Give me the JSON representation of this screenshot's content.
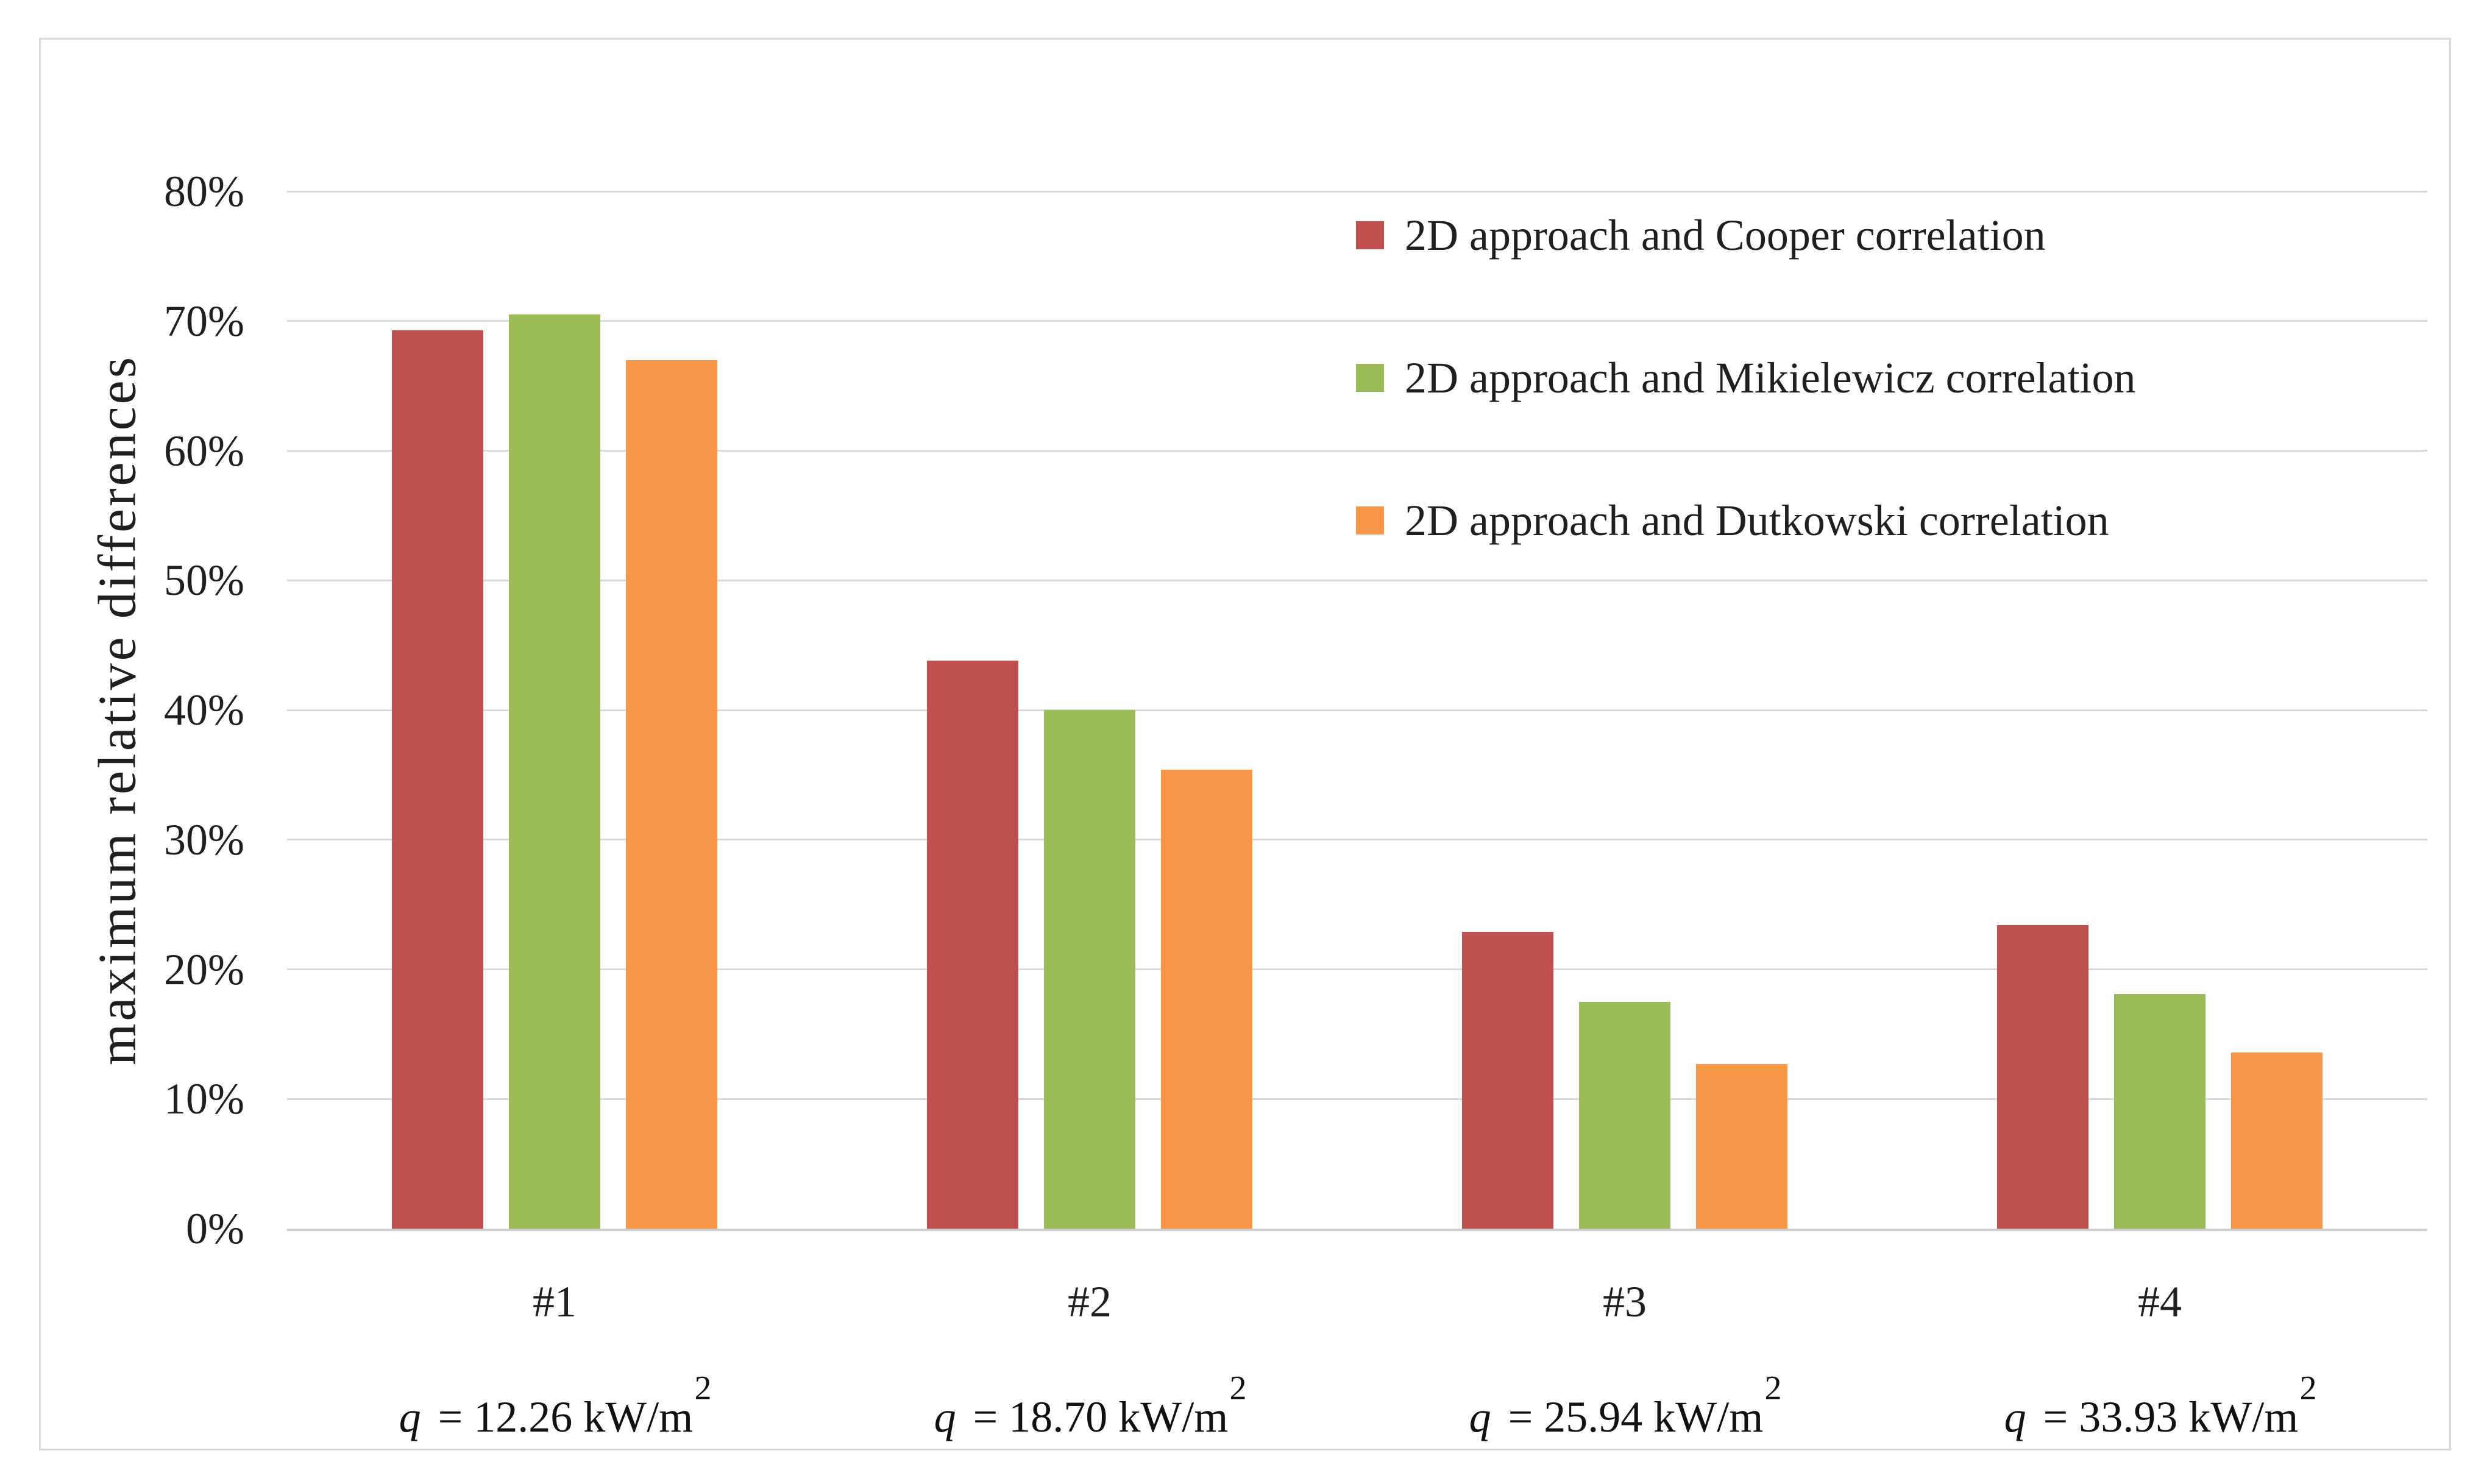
{
  "figure": {
    "background": "#FFFFFF",
    "border_color": "#D9D9D9"
  },
  "chart_data": {
    "type": "bar",
    "title": "",
    "xlabel": "",
    "ylabel": "maximum relative differences",
    "ylim": [
      0,
      0.8
    ],
    "y_ticks": [
      "0%",
      "10%",
      "20%",
      "30%",
      "40%",
      "50%",
      "60%",
      "70%",
      "80%"
    ],
    "grid": "horizontal gridlines, light gray",
    "gridline_color": "#D9D9D9",
    "axis_text_color": "#1F1F1F",
    "legend_position": "inside top-right",
    "value_unit": "percent",
    "categories": [
      {
        "label": "#1",
        "q_symbol": "q",
        "q_equals": "=",
        "q_value": "12.26",
        "q_unit": "kW/m",
        "q_exponent": "2"
      },
      {
        "label": "#2",
        "q_symbol": "q",
        "q_equals": "=",
        "q_value": "18.70",
        "q_unit": "kW/m",
        "q_exponent": "2"
      },
      {
        "label": "#3",
        "q_symbol": "q",
        "q_equals": "=",
        "q_value": "25.94",
        "q_unit": "kW/m",
        "q_exponent": "2"
      },
      {
        "label": "#4",
        "q_symbol": "q",
        "q_equals": "=",
        "q_value": "33.93",
        "q_unit": "kW/m",
        "q_exponent": "2"
      }
    ],
    "series": [
      {
        "id": "cooper",
        "name": "2D approach and Cooper correlation",
        "color": "#C0504D",
        "values_pct": [
          69.3,
          43.8,
          22.9,
          23.4
        ]
      },
      {
        "id": "mikielewicz",
        "name": "2D approach and Mikielewicz correlation",
        "color": "#9BBB59",
        "values_pct": [
          70.5,
          40.0,
          17.5,
          18.1
        ]
      },
      {
        "id": "dutkowski",
        "name": "2D approach and Dutkowski correlation",
        "color": "#F79646",
        "values_pct": [
          67.0,
          35.4,
          12.7,
          13.6
        ]
      }
    ]
  }
}
